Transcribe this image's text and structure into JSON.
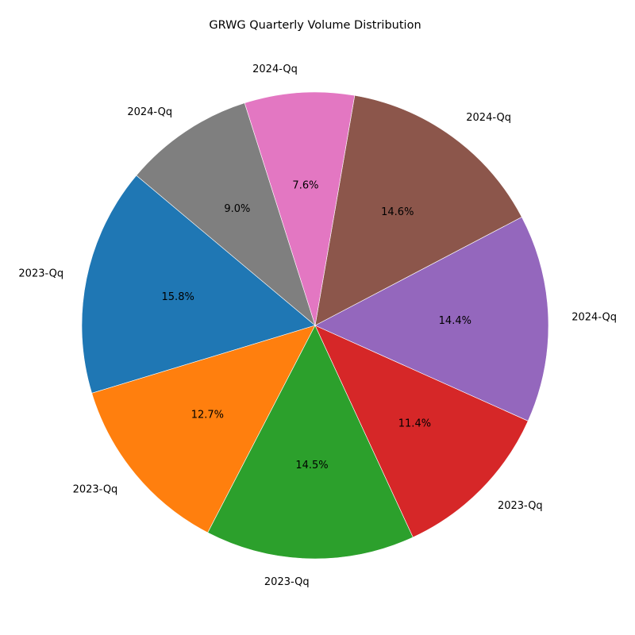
{
  "chart_data": {
    "type": "pie",
    "title": "GRWG Quarterly Volume Distribution",
    "start_angle_deg": 140,
    "direction": "counterclockwise",
    "autopct_format": "{:.1f}%",
    "slices": [
      {
        "label": "2023-Qq",
        "value": 15.8,
        "color": "#1f77b4"
      },
      {
        "label": "2023-Qq",
        "value": 12.7,
        "color": "#ff7f0e"
      },
      {
        "label": "2023-Qq",
        "value": 14.5,
        "color": "#2ca02c"
      },
      {
        "label": "2023-Qq",
        "value": 11.4,
        "color": "#d62728"
      },
      {
        "label": "2024-Qq",
        "value": 14.4,
        "color": "#9467bd"
      },
      {
        "label": "2024-Qq",
        "value": 14.6,
        "color": "#8c564b"
      },
      {
        "label": "2024-Qq",
        "value": 7.6,
        "color": "#e377c2"
      },
      {
        "label": "2024-Qq",
        "value": 9.0,
        "color": "#7f7f7f"
      }
    ]
  }
}
